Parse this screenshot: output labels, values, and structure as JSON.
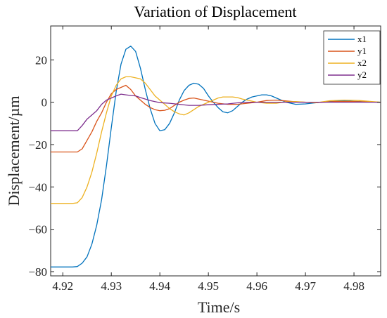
{
  "chart_data": {
    "type": "line",
    "title": "Variation of Displacement",
    "xlabel": "Time/s",
    "ylabel": "Displacement/µm",
    "xlim": [
      4.9175,
      4.9855
    ],
    "ylim": [
      -82,
      36
    ],
    "xticks": [
      4.92,
      4.93,
      4.94,
      4.95,
      4.96,
      4.97,
      4.98
    ],
    "xtick_labels": [
      "4.92",
      "4.93",
      "4.94",
      "4.95",
      "4.96",
      "4.97",
      "4.98"
    ],
    "yticks": [
      -80,
      -60,
      -40,
      -20,
      0,
      20
    ],
    "ytick_labels": [
      "−80",
      "−60",
      "−40",
      "−20",
      "0",
      "20"
    ],
    "grid": false,
    "legend_position": "top-right",
    "series": [
      {
        "name": "x1",
        "color": "#0072BD",
        "x": [
          4.9175,
          4.92,
          4.922,
          4.923,
          4.924,
          4.925,
          4.926,
          4.927,
          4.928,
          4.929,
          4.93,
          4.931,
          4.932,
          4.933,
          4.934,
          4.935,
          4.936,
          4.937,
          4.938,
          4.939,
          4.94,
          4.941,
          4.942,
          4.943,
          4.944,
          4.945,
          4.946,
          4.947,
          4.948,
          4.949,
          4.95,
          4.951,
          4.952,
          4.953,
          4.954,
          4.955,
          4.956,
          4.957,
          4.958,
          4.959,
          4.96,
          4.961,
          4.962,
          4.963,
          4.964,
          4.965,
          4.966,
          4.967,
          4.968,
          4.97,
          4.972,
          4.975,
          4.978,
          4.981,
          4.9855
        ],
        "y": [
          -77.8,
          -77.8,
          -77.8,
          -77.6,
          -76,
          -73,
          -67,
          -58,
          -46,
          -30,
          -12,
          5,
          18,
          25,
          26.5,
          24,
          16,
          6,
          -3,
          -10,
          -13.5,
          -13,
          -10,
          -5,
          1,
          5.5,
          8,
          9,
          8.5,
          6.5,
          3,
          0,
          -2.5,
          -4.5,
          -5,
          -4,
          -2,
          0,
          1.5,
          2.5,
          3,
          3.5,
          3.5,
          3,
          2,
          1,
          0,
          -0.5,
          -1,
          -0.8,
          -0.3,
          0.4,
          0.6,
          0.3,
          0
        ]
      },
      {
        "name": "y1",
        "color": "#D95319",
        "x": [
          4.9175,
          4.92,
          4.922,
          4.923,
          4.924,
          4.925,
          4.926,
          4.927,
          4.928,
          4.929,
          4.93,
          4.931,
          4.932,
          4.933,
          4.934,
          4.935,
          4.936,
          4.937,
          4.938,
          4.939,
          4.94,
          4.941,
          4.942,
          4.943,
          4.944,
          4.945,
          4.946,
          4.947,
          4.948,
          4.95,
          4.952,
          4.954,
          4.956,
          4.958,
          4.96,
          4.962,
          4.964,
          4.966,
          4.968,
          4.972,
          4.976,
          4.98,
          4.9855
        ],
        "y": [
          -23.5,
          -23.5,
          -23.5,
          -23.5,
          -22,
          -18,
          -14,
          -9,
          -5,
          0,
          4,
          6,
          7,
          8,
          6,
          3,
          1,
          -1,
          -2.5,
          -3.5,
          -4,
          -3.8,
          -3,
          -1.5,
          0,
          1,
          1.8,
          2,
          1.5,
          0.5,
          -0.5,
          -1,
          -1,
          -0.5,
          0,
          0.8,
          1,
          0.6,
          0.2,
          -0.2,
          0.3,
          0.3,
          0
        ]
      },
      {
        "name": "x2",
        "color": "#EDB120",
        "x": [
          4.9175,
          4.92,
          4.922,
          4.923,
          4.924,
          4.925,
          4.926,
          4.927,
          4.928,
          4.929,
          4.93,
          4.931,
          4.932,
          4.933,
          4.934,
          4.935,
          4.936,
          4.937,
          4.938,
          4.939,
          4.94,
          4.941,
          4.942,
          4.943,
          4.944,
          4.945,
          4.946,
          4.947,
          4.948,
          4.949,
          4.95,
          4.951,
          4.952,
          4.953,
          4.954,
          4.955,
          4.956,
          4.957,
          4.958,
          4.96,
          4.962,
          4.964,
          4.966,
          4.968,
          4.97,
          4.972,
          4.975,
          4.978,
          4.981,
          4.9855
        ],
        "y": [
          -47.8,
          -47.8,
          -47.8,
          -47.5,
          -45,
          -40,
          -33,
          -24,
          -14,
          -5,
          3,
          8,
          11,
          12,
          12,
          11.5,
          11,
          9,
          6,
          3,
          1,
          -1,
          -3,
          -4.5,
          -5.5,
          -6,
          -5,
          -3.5,
          -2,
          -1,
          0,
          1,
          2,
          2.5,
          2.5,
          2.5,
          2.2,
          1.5,
          1,
          0,
          -0.5,
          -0.5,
          0.2,
          0.3,
          0,
          -0.3,
          0.7,
          1,
          0.8,
          0
        ]
      },
      {
        "name": "y2",
        "color": "#7E2F8E",
        "x": [
          4.9175,
          4.92,
          4.922,
          4.923,
          4.924,
          4.925,
          4.926,
          4.927,
          4.928,
          4.929,
          4.93,
          4.931,
          4.932,
          4.933,
          4.934,
          4.935,
          4.936,
          4.937,
          4.938,
          4.94,
          4.942,
          4.944,
          4.946,
          4.948,
          4.95,
          4.952,
          4.954,
          4.956,
          4.958,
          4.96,
          4.962,
          4.964,
          4.966,
          4.968,
          4.972,
          4.976,
          4.98,
          4.9855
        ],
        "y": [
          -13.5,
          -13.5,
          -13.5,
          -13.5,
          -11,
          -8,
          -6,
          -4,
          -1,
          1,
          2,
          3,
          3.8,
          3.5,
          3.2,
          3,
          2.2,
          1.5,
          0.8,
          -0.2,
          -0.5,
          -1,
          -1.5,
          -1.5,
          -1.2,
          -1,
          -0.8,
          -0.3,
          0,
          0,
          0,
          0,
          0,
          0,
          0,
          0,
          0,
          0
        ]
      }
    ]
  }
}
